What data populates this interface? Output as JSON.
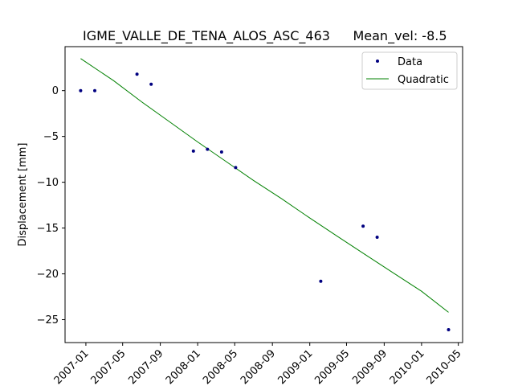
{
  "chart_data": {
    "type": "scatter",
    "title": "IGME_VALLE_DE_TENA_ALOS_ASC_463",
    "title_right": "Mean_vel: -8.5",
    "xlabel": "",
    "ylabel": "Displacement [mm]",
    "x_tick_labels": [
      "2007-01",
      "2007-05",
      "2007-09",
      "2008-01",
      "2008-05",
      "2008-09",
      "2009-01",
      "2009-05",
      "2009-09",
      "2010-01",
      "2010-05"
    ],
    "x_ticks": [
      "2007-01-01",
      "2007-05-01",
      "2007-09-01",
      "2008-01-01",
      "2008-05-01",
      "2008-09-01",
      "2009-01-01",
      "2009-05-01",
      "2009-09-01",
      "2010-01-01",
      "2010-05-01"
    ],
    "xlim": [
      "2006-10-25",
      "2010-05-15"
    ],
    "ylim": [
      -27.5,
      4.8
    ],
    "y_ticks": [
      0,
      -5,
      -10,
      -15,
      -20,
      -25
    ],
    "y_tick_labels": [
      "0",
      "−5",
      "−10",
      "−15",
      "−20",
      "−25"
    ],
    "grid": false,
    "legend_position": "top-right",
    "series": [
      {
        "name": "Data",
        "kind": "points",
        "color": "#000080",
        "x": [
          "2006-12-15",
          "2007-01-30",
          "2007-06-17",
          "2007-08-02",
          "2007-12-18",
          "2008-02-02",
          "2008-03-19",
          "2008-05-04",
          "2009-02-06",
          "2009-06-24",
          "2009-08-09",
          "2010-03-30"
        ],
        "y": [
          0.0,
          0.0,
          1.8,
          0.7,
          -6.6,
          -6.4,
          -6.7,
          -8.4,
          -20.8,
          -14.8,
          -16.0,
          -26.1
        ]
      },
      {
        "name": "Quadratic",
        "kind": "line",
        "color": "#008000",
        "x": [
          "2006-12-15",
          "2007-04-01",
          "2007-07-01",
          "2007-10-01",
          "2008-01-01",
          "2008-04-01",
          "2008-07-01",
          "2008-10-01",
          "2009-01-01",
          "2009-04-01",
          "2009-07-01",
          "2009-10-01",
          "2010-01-01",
          "2010-03-30"
        ],
        "y": [
          3.5,
          1.1,
          -1.2,
          -3.4,
          -5.6,
          -7.7,
          -9.8,
          -11.8,
          -13.9,
          -15.9,
          -17.9,
          -19.9,
          -21.9,
          -24.2
        ]
      }
    ]
  }
}
